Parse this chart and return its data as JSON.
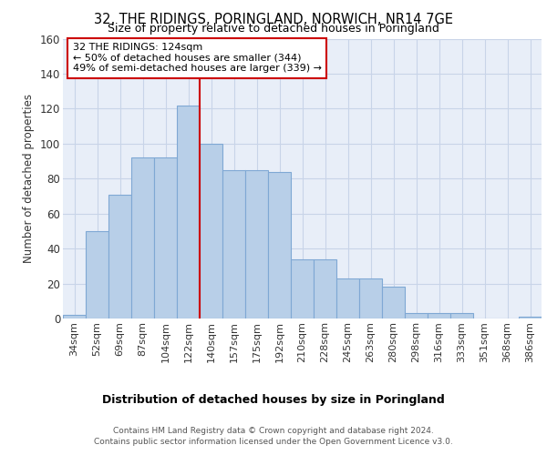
{
  "title": "32, THE RIDINGS, PORINGLAND, NORWICH, NR14 7GE",
  "subtitle": "Size of property relative to detached houses in Poringland",
  "xlabel": "Distribution of detached houses by size in Poringland",
  "ylabel": "Number of detached properties",
  "categories": [
    "34sqm",
    "52sqm",
    "69sqm",
    "87sqm",
    "104sqm",
    "122sqm",
    "140sqm",
    "157sqm",
    "175sqm",
    "192sqm",
    "210sqm",
    "228sqm",
    "245sqm",
    "263sqm",
    "280sqm",
    "298sqm",
    "316sqm",
    "333sqm",
    "351sqm",
    "368sqm",
    "386sqm"
  ],
  "values": [
    2,
    50,
    71,
    92,
    92,
    122,
    100,
    85,
    85,
    84,
    34,
    34,
    23,
    23,
    18,
    3,
    3,
    3,
    0,
    0,
    1
  ],
  "bar_color": "#b8cfe8",
  "bar_edge_color": "#7fa8d4",
  "grid_color": "#c8d4e8",
  "background_color": "#e8eef8",
  "annotation_text_line1": "32 THE RIDINGS: 124sqm",
  "annotation_text_line2": "← 50% of detached houses are smaller (344)",
  "annotation_text_line3": "49% of semi-detached houses are larger (339) →",
  "annotation_box_color": "#ffffff",
  "annotation_box_edge_color": "#cc0000",
  "red_line_color": "#cc0000",
  "ylim": [
    0,
    160
  ],
  "yticks": [
    0,
    20,
    40,
    60,
    80,
    100,
    120,
    140,
    160
  ],
  "footer_line1": "Contains HM Land Registry data © Crown copyright and database right 2024.",
  "footer_line2": "Contains public sector information licensed under the Open Government Licence v3.0."
}
